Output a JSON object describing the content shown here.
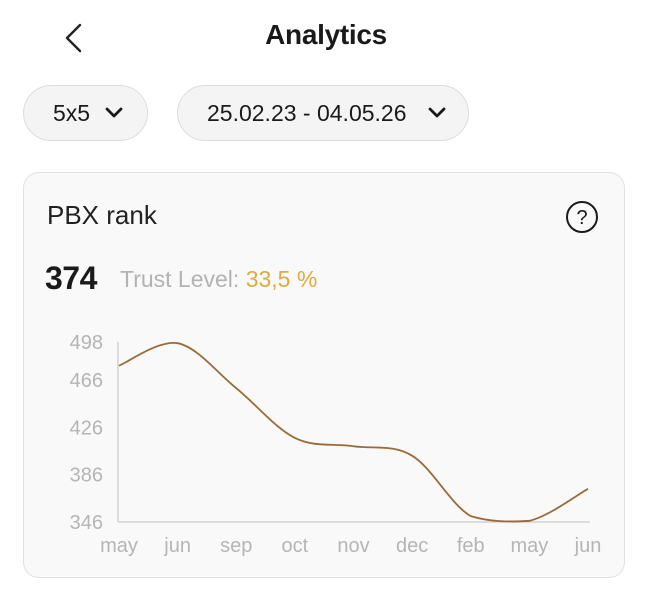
{
  "header": {
    "title": "Analytics",
    "back_icon": "chevron-left-icon"
  },
  "filters": {
    "size": {
      "value": "5x5",
      "icon": "chevron-down-icon"
    },
    "date_range": {
      "value": "25.02.23 - 04.05.26",
      "icon": "chevron-down-icon"
    }
  },
  "card": {
    "title": "PBX rank",
    "help_icon": "question-circle-icon",
    "rank_value": "374",
    "trust_label": "Trust Level:",
    "trust_value": "33,5 %",
    "trust_color": "#e0ab3d"
  },
  "chart_data": {
    "type": "line",
    "line_color": "#9a6a38",
    "x_ticks": [
      "may",
      "jun",
      "sep",
      "oct",
      "nov",
      "dec",
      "feb",
      "may",
      "jun"
    ],
    "y_ticks": [
      346,
      386,
      426,
      466,
      498
    ],
    "ylim": [
      346,
      498
    ],
    "series": [
      {
        "points": [
          [
            0,
            478
          ],
          [
            1,
            497
          ],
          [
            2,
            459
          ],
          [
            3,
            417
          ],
          [
            4,
            410
          ],
          [
            5,
            402
          ],
          [
            6,
            351
          ],
          [
            7,
            347
          ],
          [
            8,
            374
          ]
        ]
      }
    ],
    "grid": false
  }
}
